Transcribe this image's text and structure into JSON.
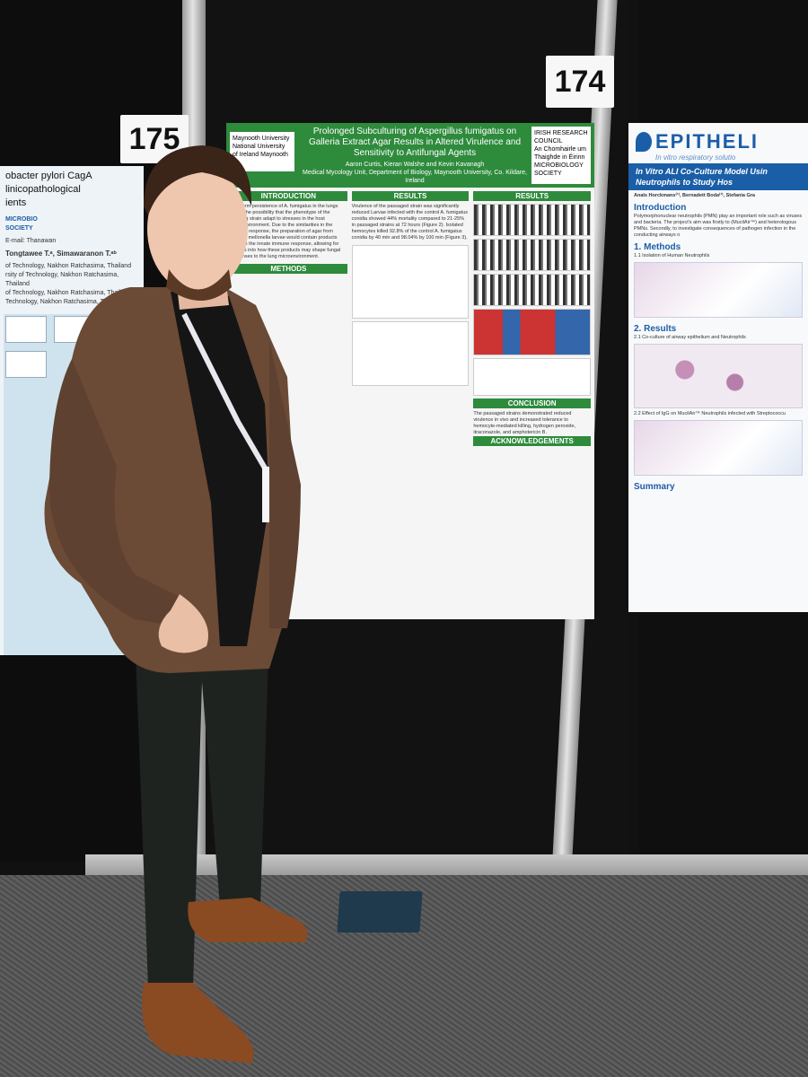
{
  "numbers": {
    "left_board": "175",
    "center_board": "174"
  },
  "poster_left": {
    "title": "obacter pylori CagA\nlinicopathological\nients",
    "logo_text": "MICROBIO\nSOCIETY",
    "email_line": "E-mail: Thanawan",
    "authors": "Tongtawee T.ᵃ, Simawaranon T.ᵃᵇ",
    "affiliations": "of Technology, Nakhon Ratchasima, Thailand\nrsity of Technology, Nakhon Ratchasima, Thailand\nof Technology, Nakhon Ratchasima, Thailand\nTechnology, Nakhon Ratchasima, Thailand"
  },
  "poster_main": {
    "title": "Prolonged Subculturing of Aspergillus fumigatus on Galleria Extract Agar Results in Altered Virulence and Sensitivity to Antifungal Agents",
    "authors": "Aaron Curtis, Kieran Walshe and Kevin Kavanagh",
    "affiliation": "Medical Mycology Unit, Department of Biology, Maynooth University, Co. Kildare, Ireland",
    "logo_left": "Maynooth University\nNational University of Ireland Maynooth",
    "logo_right": "IRISH RESEARCH COUNCIL\nAn Chomhairle um Thaighde in Éirinn\nMICROBIOLOGY SOCIETY",
    "sections": {
      "introduction": "INTRODUCTION",
      "results_1": "RESULTS",
      "results_2": "RESULTS",
      "methods": "METHODS",
      "conclusion": "CONCLUSION",
      "acknowledgements": "ACKNOWLEDGEMENTS"
    },
    "intro_text": "long-term persistence of A. fumigatus in the lungs raises the possibility that the phenotype of the infecting strain adapt to stresses in the host microenvironment. Due to the similarities in the immune response, the preparation of agar from Galleria mellonella larvae would contain products found in the innate immune response, allowing for insights into how these products may shape fungal responses to the lung microenvironment.",
    "results_text": "Virulence of the passaged strain was significantly reduced Larvae infected with the control A. fumigatus conidia showed 44% mortality compared to 21-25% in passaged strains at 72 hours (Figure 2). Isolated hemocytes killed 92.8% of the control A. fumigatus conidia by 40 min and 98.04% by 100 min (Figure 3).",
    "conclusion_text": "The passaged strains demonstrated reduced virulence in vivo and increased tolerance to hemocyte-mediated killing, hydrogen peroxide, itraconazole, and amphotericin B."
  },
  "poster_right": {
    "brand": "EPITHELI",
    "tagline": "In vitro respiratory solutio",
    "title": "In Vitro ALI Co-Culture Model Usin Neutrophils to Study Hos",
    "authors": "Anaïs Horckmans⁽¹⁾, Bernadett Boda⁽¹⁾, Stefania Gra",
    "sections": [
      "Introduction",
      "1. Methods",
      "2. Results",
      "Summary"
    ],
    "intro_text": "Polymorphonuclear neutrophils (PMN) play an important role such as viruses and bacteria. The project's aim was firstly to (MucilAir™) and heterologous PMNs. Secondly, to investigate consequences of pathogen infection in the conducting airways o",
    "methods_sub": "1.1 Isolation of Human Neutrophils",
    "results_sub": "2.1 Co-culture of airway epithelium and Neutrophils",
    "results_sub2": "2.2 Effect of IgG on MucilAir™ Neutrophils infected with Streptococcu"
  }
}
